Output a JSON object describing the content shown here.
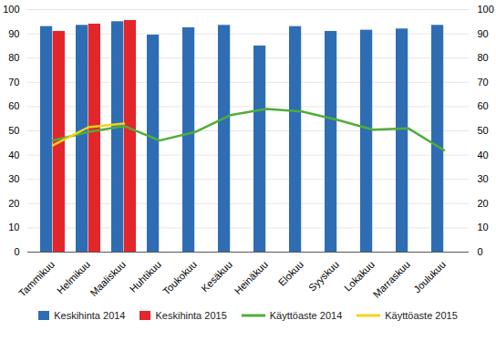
{
  "chart_data": {
    "type": "bar",
    "categories": [
      "Tammikuu",
      "Helmikuu",
      "Maaliskuu",
      "Huhtikuu",
      "Toukokuu",
      "Kesäkuu",
      "Heinäkuu",
      "Elokuu",
      "Syyskuu",
      "Lokakuu",
      "Marraskuu",
      "Joulukuu"
    ],
    "ylim": [
      0,
      100
    ],
    "yticks": [
      0,
      10,
      20,
      30,
      40,
      50,
      60,
      70,
      80,
      90,
      100
    ],
    "y2lim": [
      0,
      100
    ],
    "y2ticks": [
      0,
      10,
      20,
      30,
      40,
      50,
      60,
      70,
      80,
      90,
      100
    ],
    "grid": true,
    "legend": "bottom",
    "series": [
      {
        "name": "Keskihinta 2014",
        "type": "bar",
        "color": "#2e6db4",
        "values": [
          93,
          93.5,
          95,
          89.5,
          92.5,
          93.5,
          85,
          93,
          91,
          91.5,
          92,
          93.5
        ]
      },
      {
        "name": "Keskihinta 2015",
        "type": "bar",
        "color": "#e3262b",
        "values": [
          91,
          94,
          95.5,
          null,
          null,
          null,
          null,
          null,
          null,
          null,
          null,
          null
        ]
      },
      {
        "name": "Käyttöaste 2014",
        "type": "line",
        "axis": "y2",
        "color": "#4fad3a",
        "values": [
          46,
          49.5,
          52,
          46,
          49.5,
          56.5,
          59,
          58,
          54.5,
          50.5,
          51,
          42
        ]
      },
      {
        "name": "Käyttöaste 2015",
        "type": "line",
        "axis": "y2",
        "color": "#f5d31a",
        "values": [
          44,
          51.5,
          53,
          null,
          null,
          null,
          null,
          null,
          null,
          null,
          null,
          null
        ]
      }
    ]
  }
}
